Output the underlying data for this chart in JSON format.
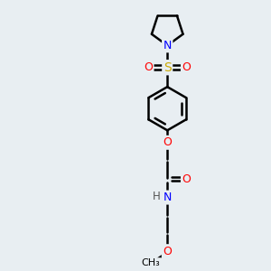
{
  "background_color": "#e8eef2",
  "atom_colors": {
    "C": "#000000",
    "N": "#0000ff",
    "O": "#ff0000",
    "S": "#ccaa00",
    "H": "#555555"
  },
  "bond_color": "#000000",
  "bond_width": 1.8,
  "figsize": [
    3.0,
    3.0
  ],
  "dpi": 100,
  "xlim": [
    0,
    10
  ],
  "ylim": [
    0,
    10
  ]
}
